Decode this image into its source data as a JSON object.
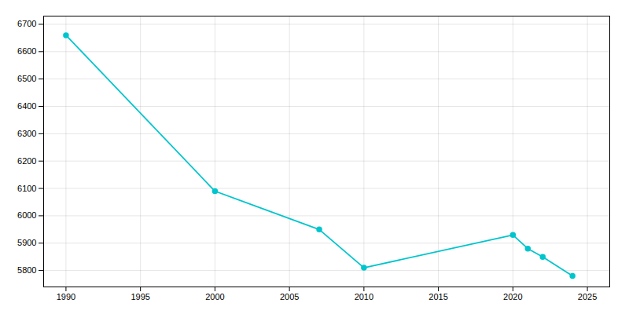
{
  "chart_data": {
    "type": "line",
    "x": [
      1990,
      2000,
      2007,
      2010,
      2020,
      2021,
      2022,
      2024
    ],
    "values": [
      6660,
      6090,
      5950,
      5810,
      5930,
      5880,
      5850,
      5780
    ],
    "color": "#00C5CD",
    "marker": "circle",
    "xlim": [
      1988.5,
      2026.5
    ],
    "ylim": [
      5740,
      6730
    ],
    "xticks": [
      1990,
      1995,
      2000,
      2005,
      2010,
      2015,
      2020,
      2025
    ],
    "yticks": [
      5800,
      5900,
      6000,
      6100,
      6200,
      6300,
      6400,
      6500,
      6600,
      6700
    ],
    "grid": true
  }
}
